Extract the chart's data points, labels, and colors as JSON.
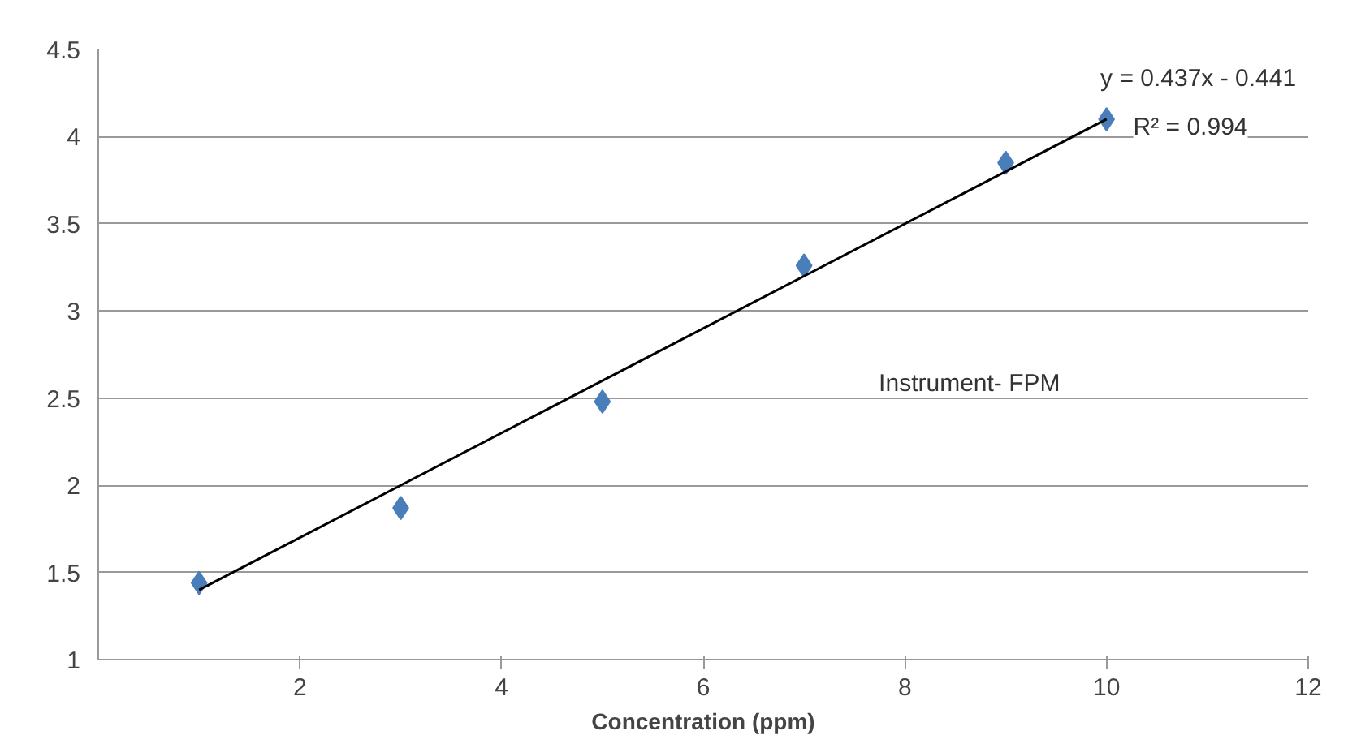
{
  "chart_data": {
    "type": "scatter",
    "xlabel": "Concentration (ppm)",
    "xlim": [
      0,
      12
    ],
    "xticks": [
      2,
      4,
      6,
      8,
      10,
      12
    ],
    "ylim": [
      1,
      4.5
    ],
    "yticks": [
      1,
      1.5,
      2,
      2.5,
      3,
      3.5,
      4,
      4.5
    ],
    "grid": "y",
    "series": [
      {
        "color": "#4a7ebb",
        "marker": "diamond",
        "x": [
          1,
          3,
          5,
          7,
          9,
          10
        ],
        "values": [
          1.44,
          1.87,
          2.48,
          3.26,
          3.85,
          4.1
        ]
      },
      {
        "type": "line",
        "color": "#000000",
        "x": [
          1,
          10
        ],
        "values": [
          1.4,
          4.1
        ]
      }
    ],
    "annotations": [
      "y = 0.437x - 0.441",
      "R² = 0.994",
      "Instrument- FPM"
    ]
  }
}
